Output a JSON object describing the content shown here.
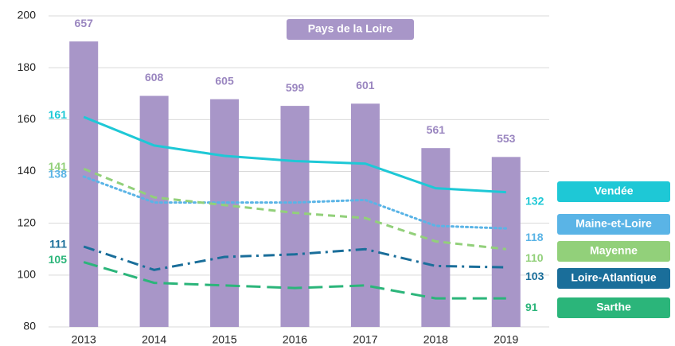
{
  "chart_data": {
    "type": "bar_line",
    "categories": [
      "2013",
      "2014",
      "2015",
      "2016",
      "2017",
      "2018",
      "2019"
    ],
    "ylim": [
      80,
      200
    ],
    "yticks": [
      80,
      100,
      120,
      140,
      160,
      180,
      200
    ],
    "y2lim": [
      400,
      680
    ],
    "grid": true,
    "series": [
      {
        "name": "Pays de la Loire",
        "type": "bar",
        "axis": "y2",
        "color": "#a896c8",
        "values": [
          657,
          608,
          605,
          599,
          601,
          561,
          553
        ]
      },
      {
        "name": "Vendée",
        "type": "line",
        "style": "solid",
        "color": "#1ec8d6",
        "values": [
          161,
          150,
          146,
          144,
          143,
          133.5,
          132
        ]
      },
      {
        "name": "Maine-et-Loire",
        "type": "line",
        "style": "dotted",
        "color": "#5ab4e6",
        "values": [
          138,
          128,
          128,
          128,
          129,
          119,
          118
        ]
      },
      {
        "name": "Mayenne",
        "type": "line",
        "style": "dashed",
        "color": "#92d07a",
        "values": [
          141,
          130,
          127,
          124,
          122,
          113,
          110
        ]
      },
      {
        "name": "Loire-Atlantique",
        "type": "line",
        "style": "dashdot",
        "color": "#1a6e9a",
        "values": [
          111,
          102,
          107,
          108,
          110,
          103.5,
          103
        ]
      },
      {
        "name": "Sarthe",
        "type": "line",
        "style": "longdash",
        "color": "#2bb57a",
        "values": [
          105,
          97,
          96,
          95,
          96,
          91,
          91
        ]
      }
    ]
  }
}
